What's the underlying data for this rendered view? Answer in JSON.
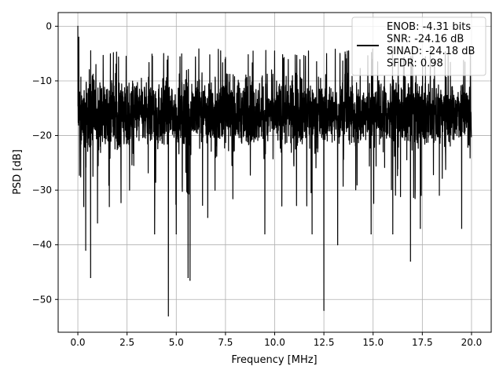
{
  "chart_data": {
    "type": "line",
    "title": "",
    "xlabel": "Frequency [MHz]",
    "ylabel": "PSD [dB]",
    "xlim": [
      -1.0,
      21.0
    ],
    "ylim": [
      -56.0,
      2.5
    ],
    "xticks": [
      0.0,
      2.5,
      5.0,
      7.5,
      10.0,
      12.5,
      15.0,
      17.5,
      20.0
    ],
    "xtick_labels": [
      "0.0",
      "2.5",
      "5.0",
      "7.5",
      "10.0",
      "12.5",
      "15.0",
      "17.5",
      "20.0"
    ],
    "yticks": [
      0,
      -10,
      -20,
      -30,
      -40,
      -50
    ],
    "ytick_labels": [
      "0",
      "−10",
      "−20",
      "−30",
      "−40",
      "−50"
    ],
    "grid": true,
    "legend_position": "top-right",
    "series": [
      {
        "name": "ENOB: -4.31 bits\nSNR: -24.16 dB\nSINAD: -24.18 dB\nSFDR: 0.98",
        "color": "#000000",
        "noise_floor_db": -17,
        "noise_band_db": [
          -25,
          -7
        ],
        "x_range": [
          0.0,
          20.0
        ],
        "peaks": [
          {
            "x": 0.0,
            "y": 0.0
          },
          {
            "x": 0.05,
            "y": -2.0
          }
        ],
        "notable_dips": [
          {
            "x": 0.3,
            "y": -33
          },
          {
            "x": 0.4,
            "y": -41
          },
          {
            "x": 0.65,
            "y": -46
          },
          {
            "x": 1.0,
            "y": -36
          },
          {
            "x": 1.6,
            "y": -33
          },
          {
            "x": 3.9,
            "y": -38
          },
          {
            "x": 4.6,
            "y": -53
          },
          {
            "x": 5.0,
            "y": -38
          },
          {
            "x": 5.6,
            "y": -46
          },
          {
            "x": 5.7,
            "y": -46.5
          },
          {
            "x": 6.6,
            "y": -35
          },
          {
            "x": 9.5,
            "y": -38
          },
          {
            "x": 11.9,
            "y": -38
          },
          {
            "x": 12.5,
            "y": -52
          },
          {
            "x": 13.2,
            "y": -40
          },
          {
            "x": 14.9,
            "y": -38
          },
          {
            "x": 16.0,
            "y": -38
          },
          {
            "x": 16.9,
            "y": -43
          },
          {
            "x": 17.4,
            "y": -37
          },
          {
            "x": 19.5,
            "y": -37
          }
        ]
      }
    ]
  }
}
